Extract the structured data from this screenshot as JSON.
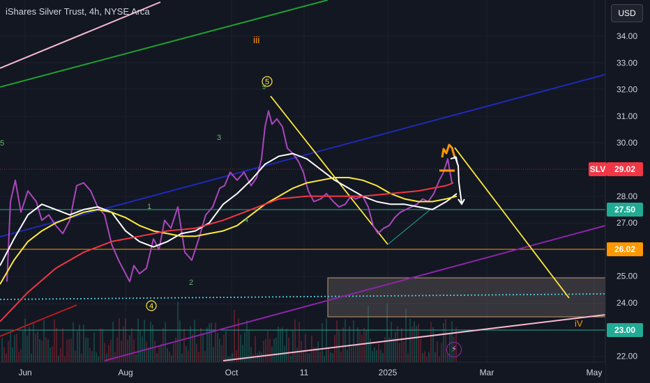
{
  "header": {
    "symbol_title": "iShares Silver Trust, 4h, NYSE Arca",
    "currency_button": "USD"
  },
  "chart_data": {
    "type": "line",
    "ticker": "SLV",
    "y_axis": {
      "range": [
        21.7,
        34.6
      ],
      "ticks": [
        "34.00",
        "33.00",
        "32.00",
        "31.00",
        "30.00",
        "28.00",
        "27.00",
        "25.00",
        "24.00",
        "22.00"
      ]
    },
    "x_axis": {
      "ticks": [
        "Jun",
        "Aug",
        "Oct",
        "11",
        "2025",
        "Mar",
        "May"
      ]
    },
    "price_labels": [
      {
        "text": "SLV",
        "color": "#f23645"
      },
      {
        "text": "29.02",
        "color": "#f23645"
      },
      {
        "text": "27.50",
        "color": "#22ab94"
      },
      {
        "text": "26.02",
        "color": "#ff9800"
      },
      {
        "text": "23.00",
        "color": "#22ab94"
      }
    ],
    "horizontal_levels": [
      {
        "value": 29.02,
        "color": "#f23645"
      },
      {
        "value": 27.5,
        "color": "#22ab94"
      },
      {
        "value": 26.02,
        "color": "#ff9800"
      },
      {
        "value": 24.22,
        "color": "#4dd0e1"
      },
      {
        "value": 23.0,
        "color": "#22ab94"
      }
    ],
    "wave_labels": {
      "wave_iii": "iii",
      "wave_5_circled": "5",
      "wave_4_circled": "4",
      "wave_iv": "iV",
      "minor_3": "3",
      "minor_1": "1",
      "minor_2": "2",
      "minor_4": "4",
      "minor_5": "5",
      "minor_5_top": "5"
    },
    "series": [
      {
        "color": "#ab47bc",
        "points": [
          [
            10,
            24.8
          ],
          [
            15,
            27.8
          ],
          [
            22,
            28.6
          ],
          [
            30,
            27.4
          ],
          [
            40,
            28.2
          ],
          [
            52,
            27.8
          ],
          [
            60,
            27.1
          ],
          [
            70,
            27.3
          ],
          [
            80,
            26.9
          ],
          [
            90,
            26.6
          ],
          [
            100,
            27.1
          ],
          [
            110,
            28.4
          ],
          [
            120,
            28.5
          ],
          [
            130,
            28.2
          ],
          [
            140,
            27.6
          ],
          [
            150,
            27.3
          ],
          [
            160,
            26.2
          ],
          [
            170,
            25.6
          ],
          [
            180,
            25.1
          ],
          [
            186,
            24.8
          ],
          [
            192,
            25.4
          ],
          [
            200,
            25.1
          ],
          [
            210,
            25.3
          ],
          [
            220,
            26.4
          ],
          [
            228,
            26.0
          ],
          [
            236,
            27.1
          ],
          [
            245,
            26.8
          ],
          [
            255,
            27.6
          ],
          [
            265,
            25.9
          ],
          [
            275,
            25.6
          ],
          [
            285,
            26.4
          ],
          [
            295,
            27.3
          ],
          [
            305,
            27.6
          ],
          [
            315,
            28.3
          ],
          [
            322,
            28.4
          ],
          [
            330,
            28.9
          ],
          [
            340,
            28.6
          ],
          [
            350,
            28.9
          ],
          [
            360,
            28.4
          ],
          [
            368,
            28.7
          ],
          [
            375,
            29.4
          ],
          [
            380,
            30.6
          ],
          [
            385,
            31.2
          ],
          [
            390,
            30.7
          ],
          [
            397,
            30.9
          ],
          [
            405,
            30.6
          ],
          [
            412,
            29.8
          ],
          [
            420,
            29.6
          ],
          [
            428,
            29.3
          ],
          [
            435,
            28.9
          ],
          [
            442,
            28.2
          ],
          [
            450,
            27.8
          ],
          [
            460,
            27.9
          ],
          [
            468,
            28.1
          ],
          [
            478,
            27.8
          ],
          [
            486,
            27.6
          ],
          [
            495,
            27.7
          ],
          [
            503,
            28.0
          ],
          [
            510,
            27.9
          ],
          [
            520,
            28.0
          ],
          [
            528,
            27.6
          ],
          [
            535,
            26.9
          ],
          [
            542,
            26.6
          ],
          [
            550,
            26.8
          ],
          [
            558,
            26.9
          ],
          [
            566,
            27.2
          ],
          [
            574,
            27.4
          ],
          [
            582,
            27.5
          ],
          [
            590,
            27.6
          ],
          [
            598,
            27.7
          ],
          [
            606,
            27.9
          ],
          [
            614,
            27.8
          ],
          [
            622,
            28.1
          ],
          [
            630,
            28.6
          ],
          [
            636,
            28.9
          ],
          [
            642,
            29.4
          ],
          [
            648,
            28.5
          ]
        ]
      },
      {
        "color": "#ffffff",
        "points": [
          [
            0,
            25.4
          ],
          [
            20,
            26.4
          ],
          [
            40,
            27.3
          ],
          [
            60,
            27.7
          ],
          [
            80,
            27.5
          ],
          [
            100,
            27.3
          ],
          [
            120,
            27.5
          ],
          [
            140,
            27.6
          ],
          [
            160,
            27.4
          ],
          [
            180,
            26.7
          ],
          [
            200,
            26.3
          ],
          [
            220,
            26.1
          ],
          [
            240,
            26.3
          ],
          [
            260,
            26.6
          ],
          [
            280,
            26.7
          ],
          [
            300,
            27.0
          ],
          [
            320,
            27.7
          ],
          [
            340,
            28.1
          ],
          [
            360,
            28.6
          ],
          [
            380,
            29.2
          ],
          [
            400,
            29.5
          ],
          [
            420,
            29.6
          ],
          [
            440,
            29.4
          ],
          [
            460,
            29.0
          ],
          [
            480,
            28.6
          ],
          [
            500,
            28.3
          ],
          [
            520,
            28.0
          ],
          [
            540,
            27.8
          ],
          [
            560,
            27.7
          ],
          [
            580,
            27.7
          ],
          [
            600,
            27.6
          ],
          [
            620,
            27.5
          ],
          [
            640,
            27.8
          ],
          [
            655,
            28.1
          ]
        ]
      },
      {
        "color": "#ffeb3b",
        "points": [
          [
            0,
            24.7
          ],
          [
            20,
            25.6
          ],
          [
            40,
            26.3
          ],
          [
            60,
            26.7
          ],
          [
            80,
            27.0
          ],
          [
            100,
            27.2
          ],
          [
            120,
            27.4
          ],
          [
            140,
            27.5
          ],
          [
            160,
            27.4
          ],
          [
            180,
            27.2
          ],
          [
            200,
            26.9
          ],
          [
            220,
            26.7
          ],
          [
            240,
            26.6
          ],
          [
            260,
            26.5
          ],
          [
            280,
            26.5
          ],
          [
            300,
            26.6
          ],
          [
            320,
            26.7
          ],
          [
            340,
            26.9
          ],
          [
            360,
            27.3
          ],
          [
            380,
            27.7
          ],
          [
            400,
            28.0
          ],
          [
            420,
            28.3
          ],
          [
            440,
            28.5
          ],
          [
            460,
            28.6
          ],
          [
            480,
            28.7
          ],
          [
            500,
            28.7
          ],
          [
            520,
            28.6
          ],
          [
            540,
            28.4
          ],
          [
            560,
            28.1
          ],
          [
            580,
            27.9
          ],
          [
            600,
            27.8
          ],
          [
            620,
            27.8
          ],
          [
            640,
            27.9
          ],
          [
            655,
            28.0
          ]
        ]
      },
      {
        "color": "#f23645",
        "points": [
          [
            0,
            23.3
          ],
          [
            40,
            24.4
          ],
          [
            80,
            25.3
          ],
          [
            120,
            25.9
          ],
          [
            160,
            26.3
          ],
          [
            200,
            26.5
          ],
          [
            240,
            26.7
          ],
          [
            280,
            26.8
          ],
          [
            320,
            27.1
          ],
          [
            360,
            27.5
          ],
          [
            400,
            27.9
          ],
          [
            440,
            28.0
          ],
          [
            480,
            28.0
          ],
          [
            520,
            28.0
          ],
          [
            560,
            28.1
          ],
          [
            600,
            28.2
          ],
          [
            640,
            28.4
          ],
          [
            650,
            28.5
          ]
        ]
      }
    ]
  }
}
